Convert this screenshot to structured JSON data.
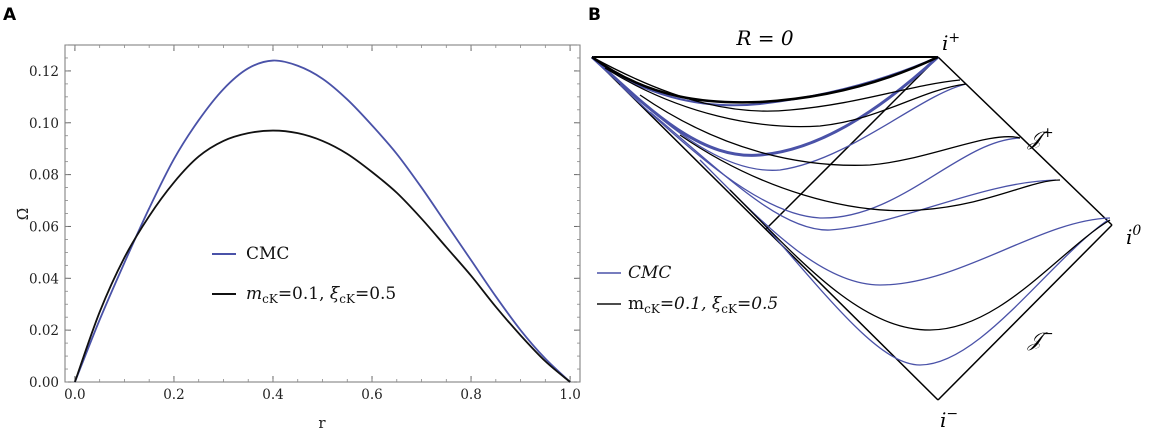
{
  "panels": {
    "a_letter": "A",
    "b_letter": "B"
  },
  "chart_data": [
    {
      "type": "line",
      "panel": "A",
      "xlabel": "r",
      "ylabel": "Ω̄",
      "xlim": [
        -0.02,
        1.02
      ],
      "ylim": [
        0,
        0.13
      ],
      "xticks": [
        "0.0",
        "0.2",
        "0.4",
        "0.6",
        "0.8",
        "1.0"
      ],
      "yticks": [
        "0.00",
        "0.02",
        "0.04",
        "0.06",
        "0.08",
        "0.10",
        "0.12"
      ],
      "series": [
        {
          "name": "CMC",
          "color": "#4a52a8",
          "x": [
            0,
            0.05,
            0.1,
            0.15,
            0.2,
            0.25,
            0.3,
            0.35,
            0.4,
            0.45,
            0.5,
            0.55,
            0.6,
            0.65,
            0.7,
            0.75,
            0.8,
            0.85,
            0.9,
            0.95,
            1.0
          ],
          "y": [
            0,
            0.024,
            0.046,
            0.067,
            0.086,
            0.101,
            0.113,
            0.121,
            0.124,
            0.122,
            0.117,
            0.109,
            0.099,
            0.088,
            0.075,
            0.061,
            0.047,
            0.033,
            0.02,
            0.009,
            0
          ]
        },
        {
          "name": "mcK=0.1, ξcK=0.5",
          "color": "#111111",
          "x": [
            0,
            0.05,
            0.1,
            0.15,
            0.2,
            0.25,
            0.3,
            0.35,
            0.4,
            0.45,
            0.5,
            0.55,
            0.6,
            0.65,
            0.7,
            0.75,
            0.8,
            0.85,
            0.9,
            0.95,
            1.0
          ],
          "y": [
            0,
            0.027,
            0.048,
            0.064,
            0.077,
            0.087,
            0.093,
            0.096,
            0.097,
            0.096,
            0.093,
            0.088,
            0.081,
            0.073,
            0.063,
            0.052,
            0.041,
            0.029,
            0.018,
            0.008,
            0
          ]
        }
      ],
      "legend": [
        "CMC",
        "m",
        "cK",
        "=0.1, ",
        "ξ",
        "cK",
        "=0.5"
      ]
    },
    {
      "type": "diagram",
      "panel": "B",
      "labels": {
        "top": "R = 0",
        "i_plus": "i",
        "i_plus_sup": "+",
        "i_zero": "i",
        "i_zero_sup": "0",
        "i_minus": "i",
        "i_minus_sup": "−",
        "scri_plus": "𝒥",
        "scri_plus_sup": "+",
        "scri_minus": "𝒥",
        "scri_minus_sup": "−"
      },
      "legend": [
        "CMC",
        "m",
        "cK",
        "=0.1, ",
        "ξ",
        "cK",
        "=0.5"
      ]
    }
  ]
}
